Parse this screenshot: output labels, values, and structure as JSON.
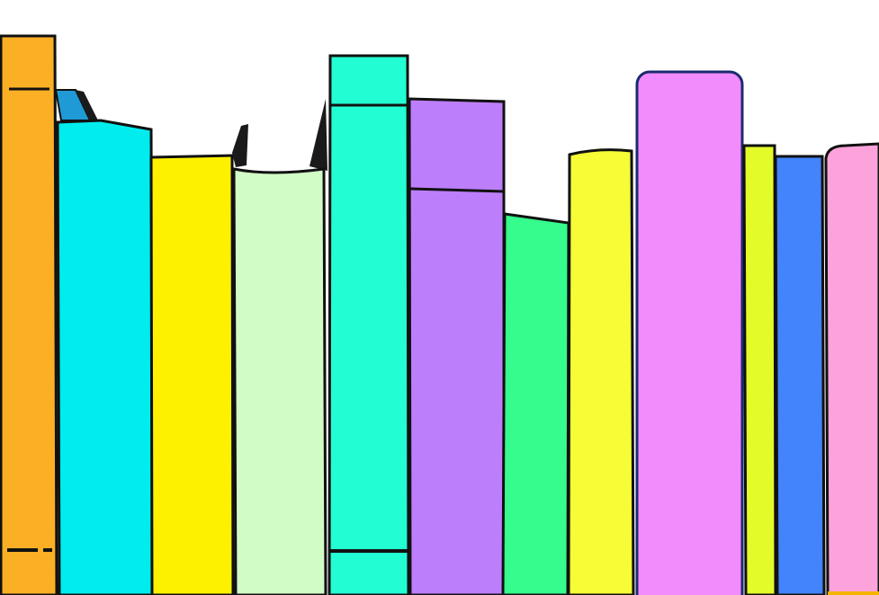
{
  "scene": {
    "background": "#ffffff",
    "outline": "#111111"
  },
  "books": [
    {
      "name": "orange",
      "color": "#fbaf25"
    },
    {
      "name": "cyan",
      "color": "#00eced"
    },
    {
      "name": "yellow",
      "color": "#fef100"
    },
    {
      "name": "pale-green",
      "color": "#d2fcc6"
    },
    {
      "name": "turquoise",
      "color": "#23fdd3"
    },
    {
      "name": "lavender",
      "color": "#bd7efc"
    },
    {
      "name": "green",
      "color": "#35fc8c"
    },
    {
      "name": "lemon",
      "color": "#f6fc35"
    },
    {
      "name": "pink",
      "color": "#f28bfb"
    },
    {
      "name": "lime",
      "color": "#e4fb2a"
    },
    {
      "name": "blue",
      "color": "#4383fb"
    },
    {
      "name": "rose",
      "color": "#fda3dc"
    }
  ],
  "leaning_book_colors": {
    "blue_edge": "#1f9ad6",
    "dark_edge": "#1a1a1a"
  }
}
